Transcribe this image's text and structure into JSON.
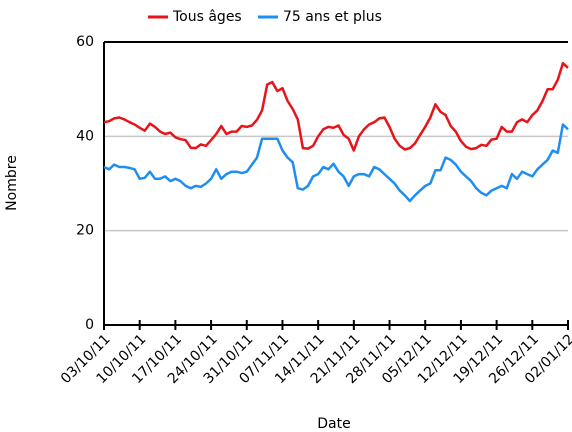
{
  "chart_data": {
    "type": "line",
    "x_label": "Date",
    "y_label": "Nombre",
    "categories": [
      "03/10/11",
      null,
      null,
      null,
      null,
      null,
      null,
      "10/10/11",
      null,
      null,
      null,
      null,
      null,
      null,
      "17/10/11",
      null,
      null,
      null,
      null,
      null,
      null,
      "24/10/11",
      null,
      null,
      null,
      null,
      null,
      null,
      "31/10/11",
      null,
      null,
      null,
      null,
      null,
      null,
      "07/11/11",
      null,
      null,
      null,
      null,
      null,
      null,
      "14/11/11",
      null,
      null,
      null,
      null,
      null,
      null,
      "21/11/11",
      null,
      null,
      null,
      null,
      null,
      null,
      "28/11/11",
      null,
      null,
      null,
      null,
      null,
      null,
      "05/12/11",
      null,
      null,
      null,
      null,
      null,
      null,
      "12/12/11",
      null,
      null,
      null,
      null,
      null,
      null,
      "19/12/11",
      null,
      null,
      null,
      null,
      null,
      null,
      "26/12/11",
      null,
      null,
      null,
      null,
      null,
      null,
      "02/01/12"
    ],
    "series": [
      {
        "name": "Tous âges",
        "color": "#e8141a",
        "values": [
          43,
          43.2,
          43.8,
          44,
          43.6,
          43,
          42.5,
          41.8,
          41.2,
          42.7,
          42,
          41,
          40.5,
          40.8,
          39.8,
          39.4,
          39.2,
          37.6,
          37.5,
          38.3,
          38,
          39.2,
          40.5,
          42.2,
          40.5,
          41,
          41,
          42.2,
          42,
          42.3,
          43.5,
          45.5,
          51,
          51.5,
          49.6,
          50.2,
          47.5,
          45.8,
          43.6,
          37.5,
          37.4,
          38,
          40,
          41.5,
          42,
          41.8,
          42.3,
          40.3,
          39.5,
          37,
          40,
          41.5,
          42.5,
          43,
          43.8,
          44,
          42,
          39.5,
          38,
          37.2,
          37.5,
          38.5,
          40.3,
          42,
          44,
          46.8,
          45.2,
          44.5,
          42.2,
          41,
          39,
          37.8,
          37.3,
          37.5,
          38.2,
          38,
          39.3,
          39.5,
          42,
          41,
          41,
          43,
          43.6,
          43,
          44.5,
          45.5,
          47.5,
          50,
          50,
          52,
          55.5,
          54.5
        ]
      },
      {
        "name": "75 ans et plus",
        "color": "#1e8ff0",
        "values": [
          33.5,
          33,
          34,
          33.5,
          33.5,
          33.3,
          33,
          31,
          31.2,
          32.5,
          31,
          31,
          31.5,
          30.5,
          31,
          30.5,
          29.5,
          29,
          29.5,
          29.3,
          30,
          31,
          33,
          31,
          32,
          32.5,
          32.5,
          32.2,
          32.5,
          34,
          35.5,
          39.5,
          39.5,
          39.5,
          39.5,
          37,
          35.5,
          34.5,
          29,
          28.7,
          29.5,
          31.5,
          32,
          33.5,
          33,
          34.2,
          32.5,
          31.5,
          29.5,
          31.5,
          32,
          32,
          31.5,
          33.5,
          33,
          32,
          31,
          30,
          28.5,
          27.5,
          26.3,
          27.5,
          28.5,
          29.5,
          30,
          32.8,
          32.8,
          35.5,
          35,
          34,
          32.5,
          31.5,
          30.5,
          29,
          28,
          27.5,
          28.5,
          29,
          29.5,
          29,
          32,
          31,
          32.5,
          32,
          31.5,
          33,
          34,
          35,
          37,
          36.5,
          42.5,
          41.5
        ]
      }
    ],
    "ylim": [
      0,
      60
    ],
    "yticks": [
      0,
      20,
      40,
      60
    ],
    "grid": true,
    "legend": "top"
  }
}
